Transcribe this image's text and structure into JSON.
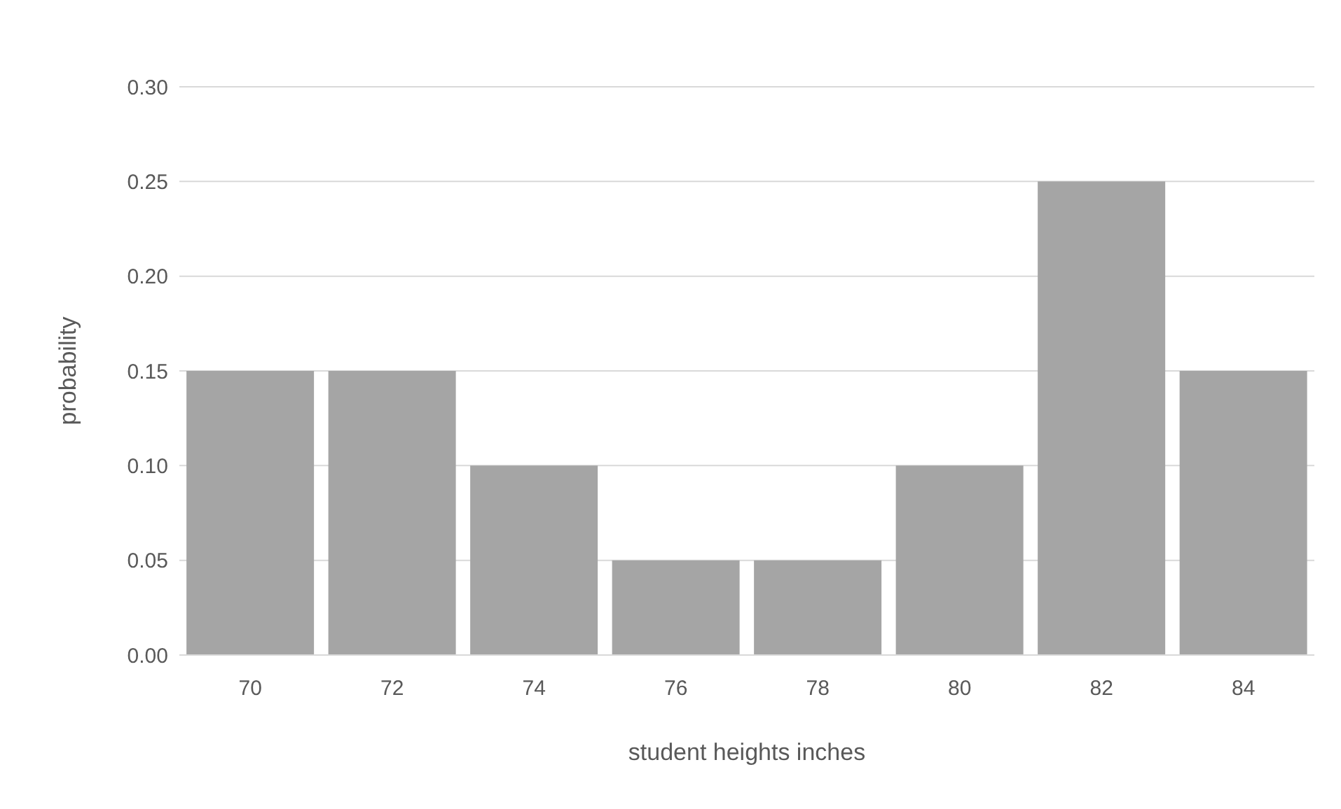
{
  "chart_data": {
    "type": "bar",
    "xlabel": "student heights inches",
    "ylabel": "probability",
    "categories": [
      "70",
      "72",
      "74",
      "76",
      "78",
      "80",
      "82",
      "84"
    ],
    "values": [
      0.15,
      0.15,
      0.1,
      0.05,
      0.05,
      0.1,
      0.25,
      0.15
    ],
    "color": "#a5a5a5",
    "ylim": [
      0,
      0.3
    ],
    "yticks": [
      {
        "value": 0,
        "label": "0.00"
      },
      {
        "value": 0.05,
        "label": "0.05"
      },
      {
        "value": 0.1,
        "label": "0.10"
      },
      {
        "value": 0.15,
        "label": "0.15"
      },
      {
        "value": 0.2,
        "label": "0.20"
      },
      {
        "value": 0.25,
        "label": "0.25"
      },
      {
        "value": 0.3,
        "label": "0.30"
      }
    ],
    "grid": "y",
    "legend": false
  }
}
